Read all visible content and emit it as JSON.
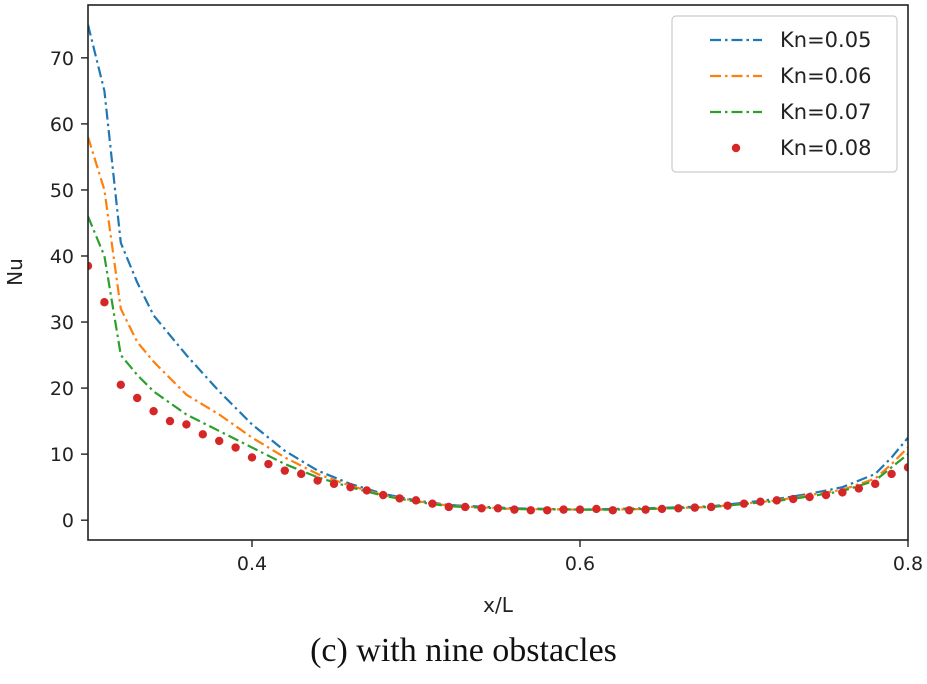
{
  "chart_data": {
    "type": "line",
    "title": "",
    "xlabel": "x/L",
    "ylabel": "Nu",
    "xlim": [
      0.3,
      0.8
    ],
    "ylim": [
      -3,
      78
    ],
    "xticks": [
      {
        "value": 0.4,
        "label": "0.4"
      },
      {
        "value": 0.6,
        "label": "0.6"
      },
      {
        "value": 0.8,
        "label": "0.8"
      }
    ],
    "yticks": [
      {
        "value": 0,
        "label": "0"
      },
      {
        "value": 10,
        "label": "10"
      },
      {
        "value": 20,
        "label": "20"
      },
      {
        "value": 30,
        "label": "30"
      },
      {
        "value": 40,
        "label": "40"
      },
      {
        "value": 50,
        "label": "50"
      },
      {
        "value": 60,
        "label": "60"
      },
      {
        "value": 70,
        "label": "70"
      }
    ],
    "legend_position": "top-right",
    "series": [
      {
        "name": "Kn=0.05",
        "color": "#1f77b4",
        "style": "dashdot",
        "x": [
          0.3,
          0.31,
          0.32,
          0.33,
          0.34,
          0.36,
          0.38,
          0.4,
          0.42,
          0.44,
          0.46,
          0.48,
          0.5,
          0.52,
          0.56,
          0.6,
          0.62,
          0.64,
          0.68,
          0.72,
          0.74,
          0.76,
          0.78,
          0.79,
          0.8
        ],
        "y": [
          75,
          65,
          42,
          36,
          31,
          25,
          19.5,
          14.5,
          10.5,
          7.5,
          5.5,
          4,
          3,
          2.3,
          1.8,
          1.6,
          1.7,
          1.8,
          2.1,
          3.2,
          4,
          5,
          7,
          9.5,
          12.5
        ]
      },
      {
        "name": "Kn=0.06",
        "color": "#ff7f0e",
        "style": "dashdot",
        "x": [
          0.3,
          0.31,
          0.32,
          0.33,
          0.34,
          0.36,
          0.38,
          0.4,
          0.42,
          0.44,
          0.46,
          0.48,
          0.5,
          0.52,
          0.56,
          0.6,
          0.62,
          0.64,
          0.68,
          0.72,
          0.74,
          0.76,
          0.78,
          0.79,
          0.8
        ],
        "y": [
          58,
          50,
          32,
          27,
          24,
          19,
          16,
          12.5,
          9.5,
          7,
          5.2,
          3.8,
          2.9,
          2.2,
          1.7,
          1.6,
          1.6,
          1.7,
          2,
          3,
          3.8,
          4.6,
          6.3,
          8.5,
          11
        ]
      },
      {
        "name": "Kn=0.07",
        "color": "#2ca02c",
        "style": "dashdot",
        "x": [
          0.3,
          0.31,
          0.32,
          0.33,
          0.34,
          0.36,
          0.38,
          0.4,
          0.42,
          0.44,
          0.46,
          0.48,
          0.5,
          0.52,
          0.56,
          0.6,
          0.62,
          0.64,
          0.68,
          0.72,
          0.74,
          0.76,
          0.78,
          0.79,
          0.8
        ],
        "y": [
          46,
          40,
          25,
          22,
          19.5,
          16,
          13.5,
          11,
          8.5,
          6.5,
          5,
          3.7,
          2.8,
          2.1,
          1.7,
          1.6,
          1.6,
          1.7,
          2,
          2.9,
          3.6,
          4.4,
          6,
          8,
          10
        ]
      },
      {
        "name": "Kn=0.08",
        "color": "#d62728",
        "style": "dots",
        "x": [
          0.3,
          0.31,
          0.32,
          0.33,
          0.34,
          0.35,
          0.36,
          0.37,
          0.38,
          0.39,
          0.4,
          0.41,
          0.42,
          0.43,
          0.44,
          0.45,
          0.46,
          0.47,
          0.48,
          0.49,
          0.5,
          0.51,
          0.52,
          0.53,
          0.54,
          0.55,
          0.56,
          0.57,
          0.58,
          0.59,
          0.6,
          0.61,
          0.62,
          0.63,
          0.64,
          0.65,
          0.66,
          0.67,
          0.68,
          0.69,
          0.7,
          0.71,
          0.72,
          0.73,
          0.74,
          0.75,
          0.76,
          0.77,
          0.78,
          0.79,
          0.8
        ],
        "y": [
          38.5,
          33,
          20.5,
          18.5,
          16.5,
          15,
          14.5,
          13,
          12,
          11,
          9.5,
          8.5,
          7.5,
          7,
          6,
          5.5,
          5,
          4.5,
          3.8,
          3.3,
          3,
          2.5,
          2,
          2,
          1.8,
          1.8,
          1.6,
          1.5,
          1.5,
          1.6,
          1.6,
          1.7,
          1.5,
          1.5,
          1.6,
          1.7,
          1.8,
          1.9,
          2,
          2.2,
          2.5,
          2.8,
          3,
          3.2,
          3.5,
          3.8,
          4.2,
          4.8,
          5.5,
          7,
          8
        ]
      }
    ]
  },
  "caption": "(c) with nine obstacles"
}
